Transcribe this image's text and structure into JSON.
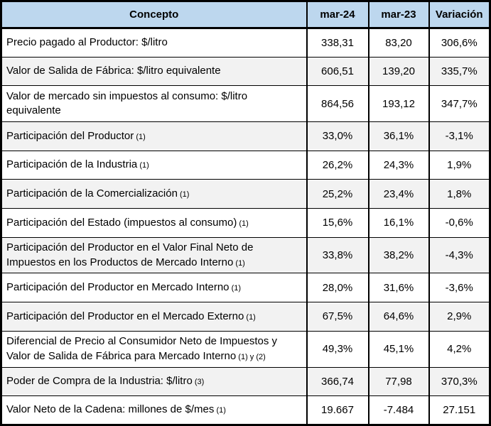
{
  "colors": {
    "header_bg": "#BDD7EE",
    "row_alt_bg": "#F2F2F2",
    "border": "#000000",
    "text": "#000000"
  },
  "table": {
    "columns": [
      "Concepto",
      "mar-24",
      "mar-23",
      "Variación"
    ],
    "rows": [
      {
        "concepto": "Precio pagado al Productor: $/litro",
        "note": "",
        "mar24": "338,31",
        "mar23": "83,20",
        "variacion": "306,6%"
      },
      {
        "concepto": "Valor de Salida de Fábrica: $/litro equivalente",
        "note": "",
        "mar24": "606,51",
        "mar23": "139,20",
        "variacion": "335,7%"
      },
      {
        "concepto": "Valor de mercado sin impuestos al consumo: $/litro equivalente",
        "note": "",
        "mar24": "864,56",
        "mar23": "193,12",
        "variacion": "347,7%"
      },
      {
        "concepto": "Participación del Productor",
        "note": "(1)",
        "mar24": "33,0%",
        "mar23": "36,1%",
        "variacion": "-3,1%"
      },
      {
        "concepto": "Participación de la Industria",
        "note": "(1)",
        "mar24": "26,2%",
        "mar23": "24,3%",
        "variacion": "1,9%"
      },
      {
        "concepto": "Participación de la Comercialización",
        "note": "(1)",
        "mar24": "25,2%",
        "mar23": "23,4%",
        "variacion": "1,8%"
      },
      {
        "concepto": "Participación del Estado (impuestos al consumo)",
        "note": "(1)",
        "mar24": "15,6%",
        "mar23": "16,1%",
        "variacion": "-0,6%"
      },
      {
        "concepto": "Participación del Productor en el Valor Final Neto de Impuestos en los Productos de Mercado Interno",
        "note": "(1)",
        "mar24": "33,8%",
        "mar23": "38,2%",
        "variacion": "-4,3%"
      },
      {
        "concepto": "Participación del Productor en Mercado Interno",
        "note": "(1)",
        "mar24": "28,0%",
        "mar23": "31,6%",
        "variacion": "-3,6%"
      },
      {
        "concepto": "Participación del Productor en el Mercado Externo",
        "note": "(1)",
        "mar24": "67,5%",
        "mar23": "64,6%",
        "variacion": "2,9%"
      },
      {
        "concepto": "Diferencial de Precio al Consumidor Neto de Impuestos y Valor de Salida de Fábrica para Mercado Interno",
        "note": "(1) y (2)",
        "mar24": "49,3%",
        "mar23": "45,1%",
        "variacion": "4,2%"
      },
      {
        "concepto": "Poder de Compra de la Industria: $/litro",
        "note": "(3)",
        "mar24": "366,74",
        "mar23": "77,98",
        "variacion": "370,3%"
      },
      {
        "concepto": "Valor Neto de la Cadena: millones de $/mes",
        "note": "(1)",
        "mar24": "19.667",
        "mar23": "-7.484",
        "variacion": "27.151"
      }
    ]
  }
}
